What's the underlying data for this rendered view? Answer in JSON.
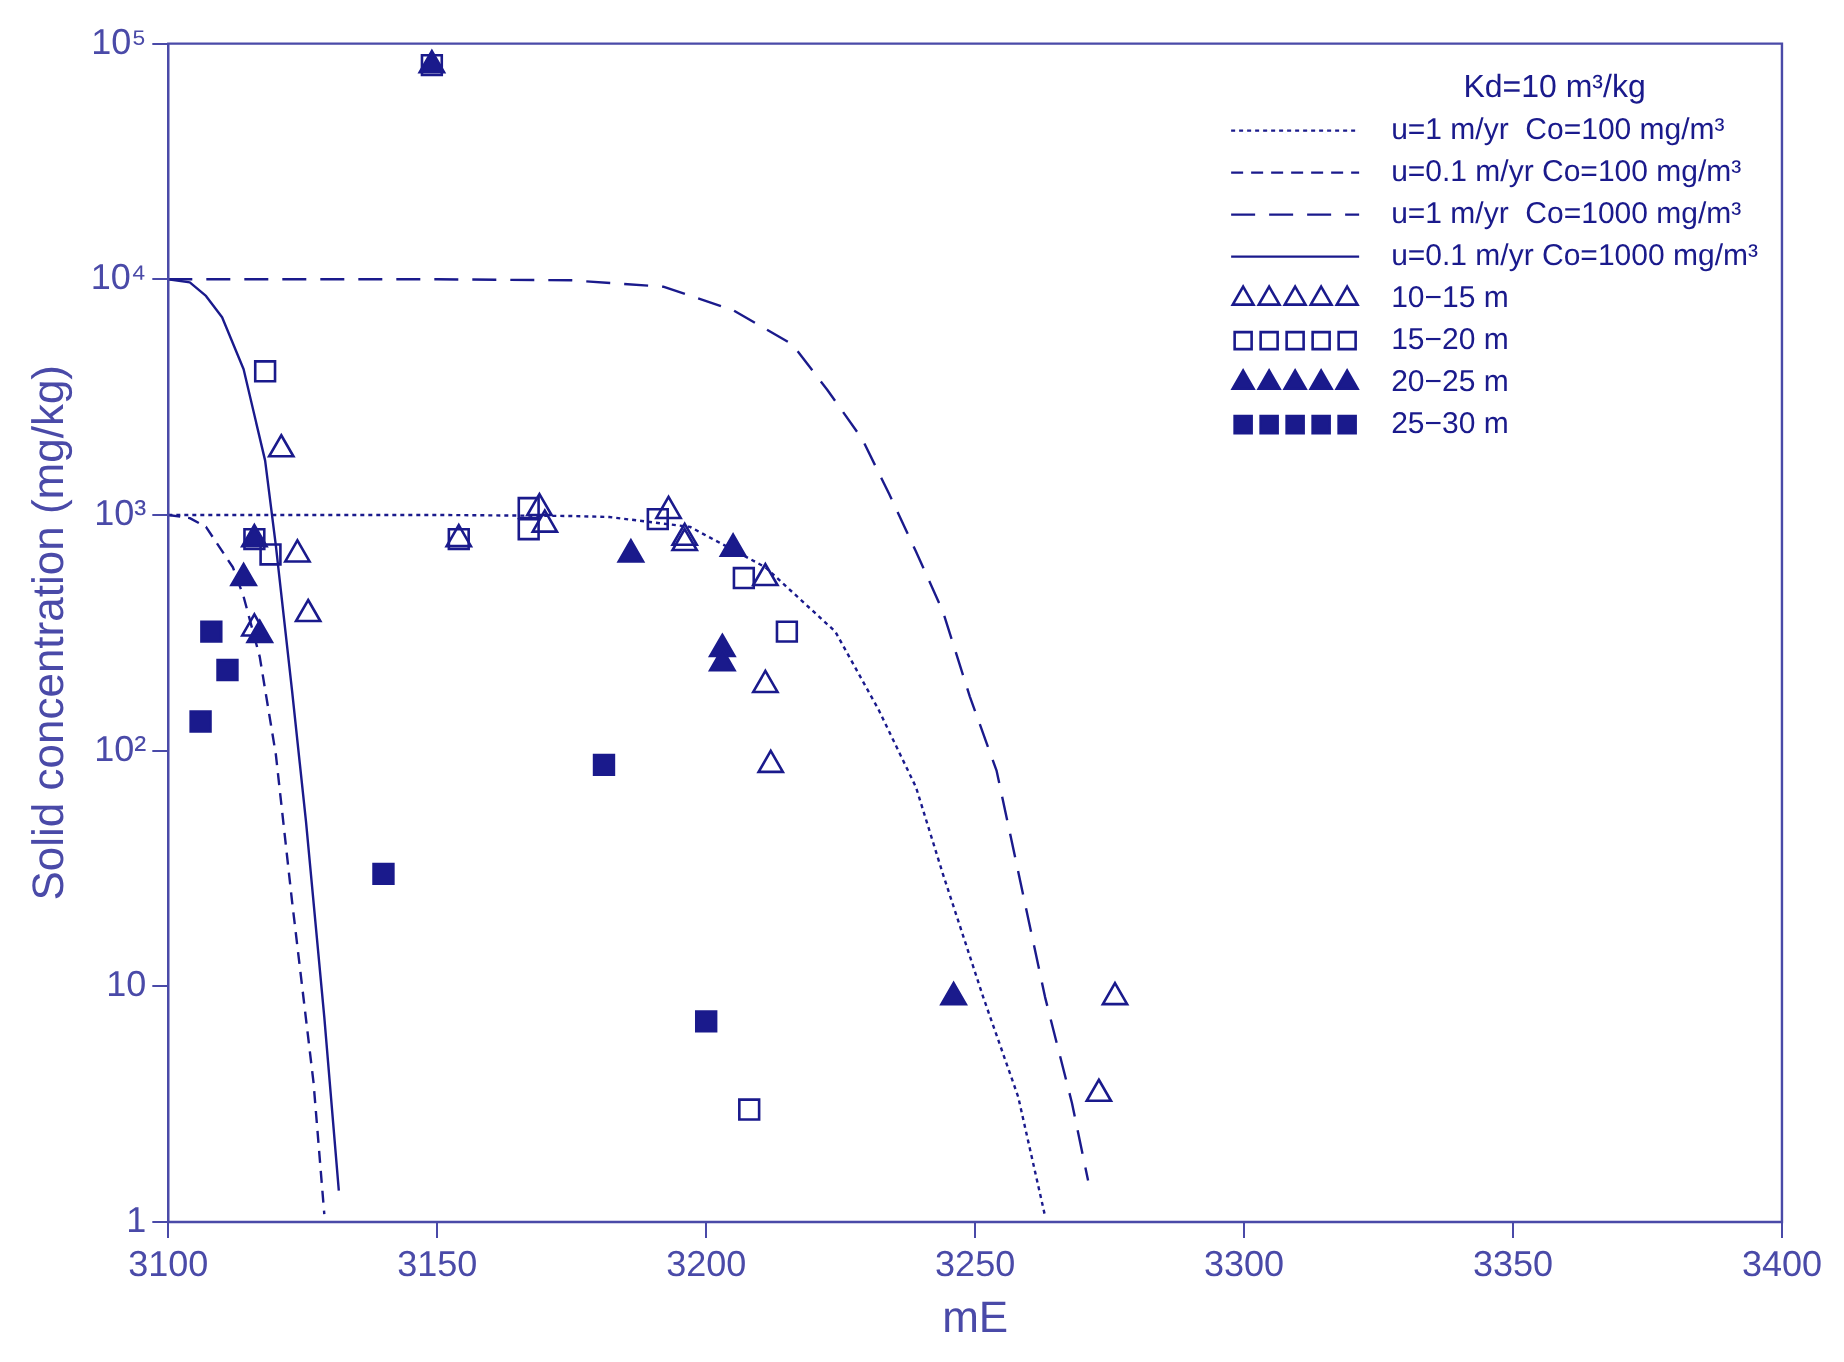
{
  "chart_data": {
    "type": "scatter",
    "xlabel": "mE",
    "ylabel": "Solid concentration (mg/kg)",
    "legend_title": "Kd=10 m³/kg",
    "legend": "top right",
    "log": "y",
    "xlim": [
      3100,
      3400
    ],
    "xticks": [
      3100,
      3150,
      3200,
      3250,
      3300,
      3350,
      3400
    ],
    "ylim": [
      1,
      100000
    ],
    "yticks": [
      {
        "value": 1,
        "label": "1"
      },
      {
        "value": 10,
        "label": "10"
      },
      {
        "value": 100,
        "label": "10²"
      },
      {
        "value": 1000,
        "label": "10³"
      },
      {
        "value": 10000,
        "label": "10⁴"
      },
      {
        "value": 100000,
        "label": "10⁵"
      }
    ],
    "series": [
      {
        "name": "u=1 m/yr  Co=100 mg/m³",
        "type": "line",
        "line_style": "dotted",
        "color": "#1a1a8c",
        "x": [
          3100,
          3150,
          3175,
          3182,
          3197,
          3211,
          3224,
          3232,
          3239,
          3244,
          3251.5,
          3258,
          3263
        ],
        "values": [
          1000,
          1000,
          990,
          980,
          890,
          600,
          320,
          150,
          70,
          30,
          9,
          3.4,
          1.06
        ]
      },
      {
        "name": "u=0.1 m/yr Co=100 mg/m³",
        "type": "line",
        "line_style": "dashed",
        "color": "#1a1a8c",
        "x": [
          3100,
          3104,
          3107,
          3112,
          3114,
          3117,
          3120,
          3123,
          3127,
          3129
        ],
        "values": [
          1000,
          970,
          890,
          600,
          450,
          250,
          96,
          23,
          3.9,
          1.08
        ]
      },
      {
        "name": "u=1 m/yr  Co=1000 mg/m³",
        "type": "line",
        "line_style": "dashed",
        "color": "#1a1a8c",
        "x": [
          3100,
          3150,
          3175,
          3192,
          3205,
          3216,
          3222.5,
          3229,
          3234,
          3239,
          3244,
          3249,
          3254,
          3263,
          3268,
          3271
        ],
        "values": [
          10000,
          10000,
          9900,
          9300,
          7400,
          5300,
          3400,
          2100,
          1230,
          700,
          390,
          170,
          82,
          9,
          3.2,
          1.5
        ]
      },
      {
        "name": "u=0.1 m/yr Co=1000 mg/m³",
        "type": "line",
        "line_style": "solid",
        "color": "#1a1a8c",
        "x": [
          3100,
          3104,
          3107,
          3110,
          3114,
          3118,
          3120,
          3123,
          3125.6,
          3129,
          3131.7
        ],
        "values": [
          10000,
          9700,
          8500,
          6900,
          4150,
          1700,
          740,
          180,
          50,
          7.4,
          1.36
        ]
      },
      {
        "name": "10−15 m",
        "marker": "triangle-open",
        "color": "#1a1a8c",
        "x": [
          3121,
          3124,
          3126,
          3116,
          3154,
          3169,
          3170,
          3193,
          3196,
          3196,
          3211,
          3211,
          3212,
          3276,
          3273
        ],
        "values": [
          1900,
          680,
          380,
          330,
          790,
          1070,
          910,
          1040,
          800,
          760,
          540,
          190,
          87,
          9,
          3.5
        ]
      },
      {
        "name": "15−20 m",
        "marker": "square-open",
        "color": "#1a1a8c",
        "x": [
          3118,
          3119,
          3116,
          3149,
          3154,
          3167,
          3167,
          3191,
          3207,
          3215,
          3208
        ],
        "values": [
          4070,
          680,
          790,
          81000,
          790,
          1070,
          870,
          960,
          540,
          320,
          3.0
        ]
      },
      {
        "name": "20−25 m",
        "marker": "triangle",
        "color": "#1a1a8c",
        "x": [
          3116,
          3117,
          3114,
          3149,
          3186,
          3205,
          3203,
          3203,
          3246
        ],
        "values": [
          790,
          310,
          540,
          81000,
          680,
          720,
          270,
          235,
          9
        ]
      },
      {
        "name": "25−30 m",
        "marker": "square",
        "color": "#1a1a8c",
        "x": [
          3108,
          3111,
          3106,
          3140,
          3181,
          3200
        ],
        "values": [
          320,
          220,
          133,
          30,
          87,
          7.1
        ]
      }
    ]
  }
}
